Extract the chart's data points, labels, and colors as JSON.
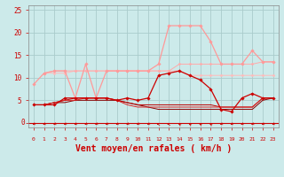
{
  "bg_color": "#cceaea",
  "grid_color": "#aacccc",
  "xlabel": "Vent moyen/en rafales ( km/h )",
  "xlabel_color": "#cc0000",
  "xlabel_fontsize": 7,
  "tick_color": "#cc0000",
  "x_ticks": [
    0,
    1,
    2,
    3,
    4,
    5,
    6,
    7,
    8,
    9,
    10,
    11,
    12,
    13,
    14,
    15,
    16,
    17,
    18,
    19,
    20,
    21,
    22,
    23
  ],
  "ylim": [
    -1,
    26
  ],
  "yticks": [
    0,
    5,
    10,
    15,
    20,
    25
  ],
  "line_light1": {
    "color": "#ff9999",
    "marker": "D",
    "markersize": 1.8,
    "linewidth": 0.9,
    "values": [
      8.5,
      11.0,
      11.5,
      11.5,
      5.5,
      13.0,
      5.5,
      11.5,
      11.5,
      11.5,
      11.5,
      11.5,
      13.0,
      21.5,
      21.5,
      21.5,
      21.5,
      18.0,
      13.0,
      13.0,
      13.0,
      16.0,
      13.5,
      13.5
    ]
  },
  "line_light2": {
    "color": "#ffaaaa",
    "marker": "D",
    "markersize": 1.5,
    "linewidth": 0.7,
    "values": [
      null,
      11.0,
      11.5,
      11.5,
      11.5,
      11.5,
      11.5,
      11.5,
      11.5,
      11.5,
      11.5,
      11.5,
      11.5,
      11.5,
      13.0,
      13.0,
      13.0,
      13.0,
      13.0,
      13.0,
      13.0,
      13.0,
      13.5,
      13.5
    ]
  },
  "line_light3": {
    "color": "#ffbbbb",
    "marker": "D",
    "markersize": 1.5,
    "linewidth": 0.7,
    "values": [
      null,
      11.0,
      11.0,
      11.0,
      11.5,
      11.5,
      11.5,
      11.5,
      11.5,
      11.5,
      11.5,
      11.5,
      11.5,
      11.5,
      11.5,
      10.5,
      10.5,
      10.5,
      10.5,
      10.5,
      10.5,
      10.5,
      10.5,
      10.5
    ]
  },
  "line_dark1": {
    "color": "#cc0000",
    "marker": "D",
    "markersize": 1.8,
    "linewidth": 0.9,
    "values": [
      4.0,
      4.0,
      4.0,
      5.5,
      5.5,
      5.5,
      5.5,
      5.5,
      5.0,
      5.5,
      5.0,
      5.5,
      10.5,
      11.0,
      11.5,
      10.5,
      9.5,
      7.5,
      3.0,
      2.5,
      5.5,
      6.5,
      5.5,
      5.5
    ]
  },
  "line_dark2": {
    "color": "#dd2222",
    "marker": null,
    "linewidth": 0.7,
    "values": [
      4.0,
      4.0,
      4.5,
      5.0,
      5.0,
      5.5,
      5.5,
      5.5,
      5.0,
      4.0,
      3.5,
      3.5,
      3.5,
      3.5,
      3.5,
      3.5,
      3.5,
      3.5,
      3.5,
      3.5,
      3.5,
      3.5,
      5.5,
      5.5
    ]
  },
  "line_dark3": {
    "color": "#bb0000",
    "marker": null,
    "linewidth": 0.7,
    "values": [
      4.0,
      4.0,
      4.5,
      5.0,
      5.5,
      5.5,
      5.5,
      5.5,
      5.0,
      4.5,
      4.0,
      4.0,
      4.0,
      4.0,
      4.0,
      4.0,
      4.0,
      4.0,
      3.5,
      3.5,
      3.5,
      3.5,
      5.5,
      5.5
    ]
  },
  "line_dark4": {
    "color": "#880000",
    "marker": null,
    "linewidth": 0.7,
    "values": [
      4.0,
      4.0,
      4.5,
      4.5,
      5.0,
      5.0,
      5.0,
      5.0,
      5.0,
      4.5,
      4.0,
      3.5,
      3.0,
      3.0,
      3.0,
      3.0,
      3.0,
      3.0,
      3.0,
      3.0,
      3.0,
      3.0,
      5.0,
      5.5
    ]
  },
  "arrow_angles": [
    225,
    225,
    225,
    225,
    225,
    225,
    225,
    225,
    225,
    225,
    225,
    225,
    270,
    270,
    315,
    315,
    315,
    315,
    225,
    225,
    225,
    225,
    225,
    225
  ]
}
